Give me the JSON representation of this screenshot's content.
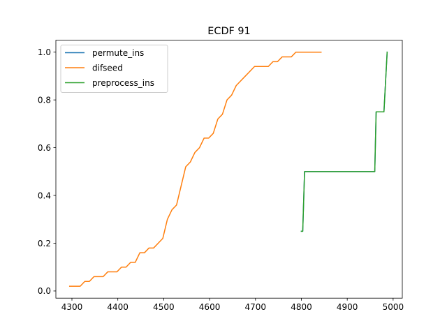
{
  "chart_data": {
    "type": "line",
    "title": "ECDF 91",
    "xlabel": "",
    "ylabel": "",
    "xlim": [
      4265,
      5020
    ],
    "ylim": [
      -0.03,
      1.05
    ],
    "xticks": [
      4300,
      4400,
      4500,
      4600,
      4700,
      4800,
      4900,
      5000
    ],
    "yticks": [
      0.0,
      0.2,
      0.4,
      0.6,
      0.8,
      1.0
    ],
    "xtick_labels": [
      "4300",
      "4400",
      "4500",
      "4600",
      "4700",
      "4800",
      "4900",
      "5000"
    ],
    "ytick_labels": [
      "0.0",
      "0.2",
      "0.4",
      "0.6",
      "0.8",
      "1.0"
    ],
    "grid": false,
    "legend_position": "upper-left",
    "series": [
      {
        "name": "permute_ins",
        "color": "#1f77b4",
        "x": [
          4800,
          4803,
          4807,
          4960,
          4963,
          4980,
          4987
        ],
        "y": [
          0.25,
          0.25,
          0.5,
          0.5,
          0.75,
          0.75,
          1.0
        ]
      },
      {
        "name": "difseed",
        "color": "#ff7f0e",
        "x": [
          4295,
          4318,
          4328,
          4338,
          4348,
          4358,
          4368,
          4378,
          4388,
          4398,
          4408,
          4418,
          4428,
          4438,
          4448,
          4458,
          4468,
          4478,
          4488,
          4498,
          4508,
          4518,
          4528,
          4538,
          4548,
          4558,
          4568,
          4578,
          4588,
          4598,
          4608,
          4618,
          4628,
          4638,
          4648,
          4658,
          4668,
          4678,
          4688,
          4698,
          4708,
          4718,
          4728,
          4738,
          4748,
          4758,
          4768,
          4778,
          4788,
          4798,
          4808,
          4818,
          4828,
          4843
        ],
        "y": [
          0.02,
          0.02,
          0.04,
          0.04,
          0.06,
          0.06,
          0.06,
          0.08,
          0.08,
          0.08,
          0.1,
          0.1,
          0.12,
          0.12,
          0.16,
          0.16,
          0.18,
          0.18,
          0.2,
          0.22,
          0.3,
          0.34,
          0.36,
          0.44,
          0.52,
          0.54,
          0.58,
          0.6,
          0.64,
          0.64,
          0.66,
          0.72,
          0.74,
          0.8,
          0.82,
          0.86,
          0.88,
          0.9,
          0.92,
          0.94,
          0.94,
          0.94,
          0.94,
          0.96,
          0.96,
          0.98,
          0.98,
          0.98,
          1.0,
          1.0,
          1.0,
          1.0,
          1.0,
          1.0
        ]
      },
      {
        "name": "preprocess_ins",
        "color": "#2ca02c",
        "x": [
          4800,
          4803,
          4807,
          4960,
          4963,
          4980,
          4987
        ],
        "y": [
          0.25,
          0.25,
          0.5,
          0.5,
          0.75,
          0.75,
          1.0
        ]
      }
    ]
  }
}
